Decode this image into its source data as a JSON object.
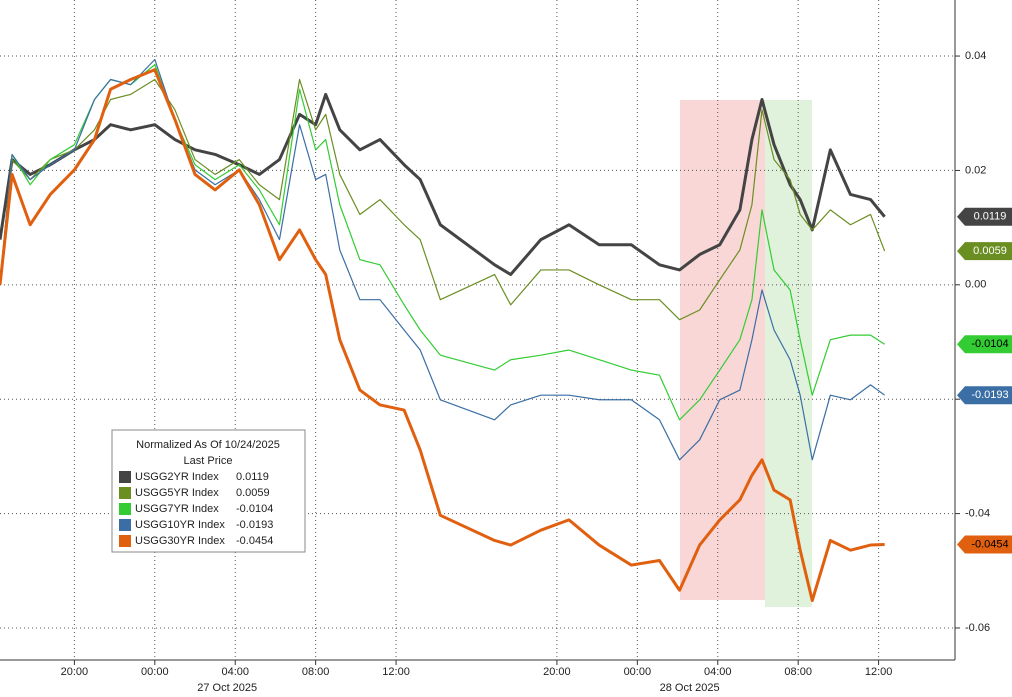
{
  "chart_data": {
    "type": "line",
    "legend_title": "Normalized As Of 10/24/2025",
    "legend_subtitle": "Last Price",
    "x": [
      -7.7,
      -7.1,
      -6.2,
      -5.2,
      -4.0,
      -3.0,
      -2.2,
      -1.2,
      0,
      1.0,
      2.0,
      3.0,
      4.2,
      5.2,
      6.2,
      7.2,
      8.0,
      8.5,
      9.2,
      10.2,
      11.2,
      12.4,
      13.2,
      14.2,
      16.9,
      17.7,
      19.2,
      20.6,
      22.1,
      23.7,
      25.1,
      26.1,
      27.1,
      28.1,
      29.1,
      29.7,
      30.2,
      30.8,
      31.6,
      32.1,
      32.7,
      33.6,
      34.6,
      35.6,
      36.3
    ],
    "series": [
      {
        "name": "USGG2YR Index",
        "color": "#444444",
        "width": 3,
        "tag_text": "#ffffff",
        "values": [
          0.0079,
          0.0219,
          0.0193,
          0.021,
          0.0236,
          0.0254,
          0.028,
          0.0271,
          0.028,
          0.0254,
          0.0236,
          0.0228,
          0.021,
          0.0193,
          0.0219,
          0.0298,
          0.028,
          0.0333,
          0.0271,
          0.0236,
          0.0254,
          0.021,
          0.0184,
          0.0105,
          0.0035,
          0.0018,
          0.0079,
          0.0105,
          0.007,
          0.007,
          0.0035,
          0.0026,
          0.0053,
          0.007,
          0.0131,
          0.0254,
          0.0324,
          0.0245,
          0.0175,
          0.0149,
          0.0096,
          0.0236,
          0.0158,
          0.0149,
          0.0119
        ]
      },
      {
        "name": "USGG5YR Index",
        "color": "#6b8e23",
        "width": 1.2,
        "tag_text": "#ffffff",
        "values": [
          0.0009,
          0.0219,
          0.0184,
          0.0219,
          0.0236,
          0.0271,
          0.0324,
          0.0333,
          0.0359,
          0.0306,
          0.0219,
          0.0193,
          0.0219,
          0.0175,
          0.0149,
          0.0359,
          0.0271,
          0.0298,
          0.0193,
          0.0123,
          0.0149,
          0.0105,
          0.0079,
          -0.0026,
          0.0018,
          -0.0035,
          0.0026,
          0.0026,
          0,
          -0.0026,
          -0.0026,
          -0.0061,
          -0.0044,
          0.0009,
          0.0061,
          0.014,
          0.0306,
          0.0219,
          0.0184,
          0.0123,
          0.0096,
          0.0131,
          0.0105,
          0.0123,
          0.0059
        ]
      },
      {
        "name": "USGG7YR Index",
        "color": "#33cc33",
        "width": 1.2,
        "tag_text": "#000000",
        "values": [
          0,
          0.0228,
          0.0175,
          0.0219,
          0.0245,
          0.0324,
          0.0359,
          0.035,
          0.0385,
          0.0289,
          0.021,
          0.0184,
          0.021,
          0.0166,
          0.0105,
          0.0342,
          0.0236,
          0.0254,
          0.014,
          0.0044,
          0.0035,
          -0.0035,
          -0.0079,
          -0.0123,
          -0.0149,
          -0.0131,
          -0.0123,
          -0.0114,
          -0.0131,
          -0.0149,
          -0.0158,
          -0.0236,
          -0.0201,
          -0.0149,
          -0.0096,
          -0.0026,
          0.0131,
          0.0026,
          -0.0009,
          -0.0096,
          -0.0193,
          -0.0096,
          -0.0088,
          -0.0088,
          -0.0104
        ]
      },
      {
        "name": "USGG10YR Index",
        "color": "#3a6ea5",
        "width": 1.2,
        "tag_text": "#ffffff",
        "values": [
          0,
          0.0228,
          0.0184,
          0.021,
          0.0236,
          0.0324,
          0.0359,
          0.035,
          0.0394,
          0.0289,
          0.0201,
          0.0175,
          0.0201,
          0.0149,
          0.0079,
          0.028,
          0.0184,
          0.0193,
          0.0061,
          -0.0026,
          -0.0026,
          -0.0079,
          -0.0114,
          -0.0201,
          -0.0236,
          -0.021,
          -0.0193,
          -0.0193,
          -0.0201,
          -0.0201,
          -0.0236,
          -0.0306,
          -0.0271,
          -0.0201,
          -0.0184,
          -0.0096,
          -0.0009,
          -0.0079,
          -0.0131,
          -0.0193,
          -0.0306,
          -0.0193,
          -0.0201,
          -0.0175,
          -0.0193
        ]
      },
      {
        "name": "USGG30YR Index",
        "color": "#e06010",
        "width": 3,
        "tag_text": "#000000",
        "values": [
          0,
          0.0193,
          0.0105,
          0.0158,
          0.0201,
          0.0254,
          0.0342,
          0.0359,
          0.0376,
          0.0289,
          0.0193,
          0.0166,
          0.0201,
          0.014,
          0.0044,
          0.0096,
          0.0044,
          0.0018,
          -0.0096,
          -0.0184,
          -0.021,
          -0.0219,
          -0.0289,
          -0.0403,
          -0.0447,
          -0.0455,
          -0.0429,
          -0.0411,
          -0.0455,
          -0.049,
          -0.0482,
          -0.0534,
          -0.0455,
          -0.0411,
          -0.0376,
          -0.0333,
          -0.0306,
          -0.0359,
          -0.0376,
          -0.0464,
          -0.0552,
          -0.0447,
          -0.0464,
          -0.0455,
          -0.0454
        ]
      }
    ],
    "xlim": [
      -7.7,
      39.8
    ],
    "xticks": [
      {
        "value": -4,
        "label": "20:00"
      },
      {
        "value": 0,
        "label": "00:00"
      },
      {
        "value": 4,
        "label": "04:00"
      },
      {
        "value": 8,
        "label": "08:00"
      },
      {
        "value": 12,
        "label": "12:00"
      },
      {
        "value": 20,
        "label": "20:00"
      },
      {
        "value": 24,
        "label": "00:00"
      },
      {
        "value": 28,
        "label": "04:00"
      },
      {
        "value": 32,
        "label": "08:00"
      },
      {
        "value": 36,
        "label": "12:00"
      }
    ],
    "date_labels": [
      {
        "text": "27 Oct 2025",
        "x": 3.6
      },
      {
        "text": "28 Oct 2025",
        "x": 26.6
      }
    ],
    "ylim": [
      -0.0656,
      0.0498
    ],
    "yticks": [
      0.04,
      0.02,
      {
        "value": 0,
        "label": "0.00"
      },
      -0.02,
      -0.04,
      -0.06
    ],
    "grid": true
  }
}
